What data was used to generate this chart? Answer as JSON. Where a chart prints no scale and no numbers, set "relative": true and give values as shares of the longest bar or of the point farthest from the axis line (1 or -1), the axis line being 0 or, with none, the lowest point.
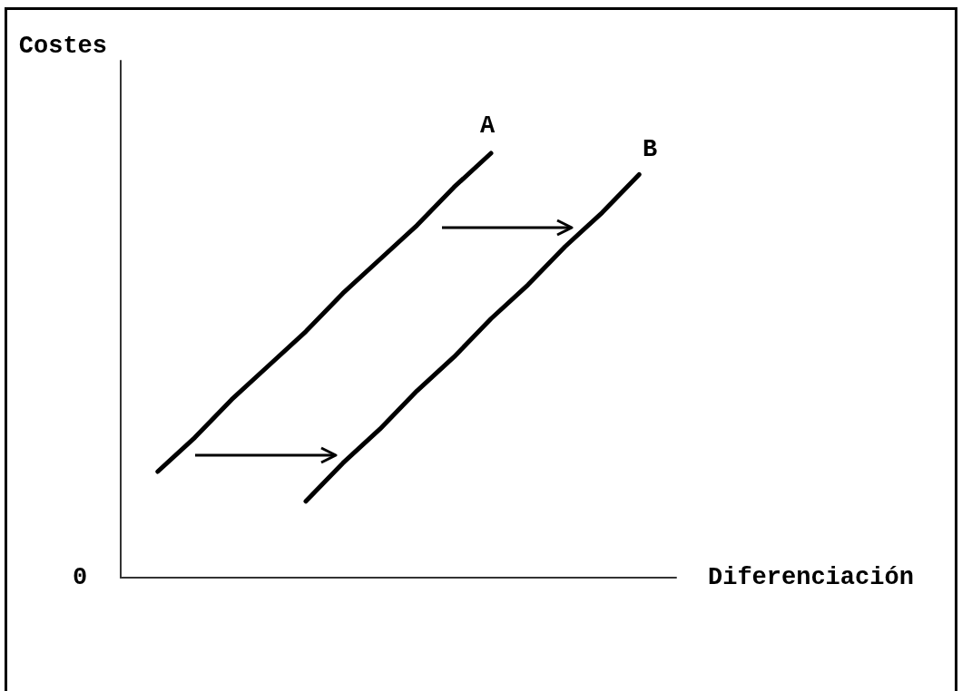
{
  "chart_data": {
    "type": "line",
    "xlabel": "Diferenciación",
    "ylabel": "Costes",
    "annotations": [
      "0"
    ],
    "categories": [
      null,
      null,
      null,
      null,
      null,
      null,
      null,
      null,
      null,
      null,
      null,
      null,
      null,
      null,
      null,
      null
    ],
    "series": [
      {
        "name": "A",
        "color": "#000000",
        "values": [
          null,
          0.25,
          0.33,
          0.42,
          0.5,
          0.58,
          0.67,
          0.75,
          0.83,
          0.92,
          1,
          null,
          null,
          null,
          null,
          null
        ]
      },
      {
        "name": "B",
        "color": "#000000",
        "values": [
          null,
          null,
          null,
          null,
          null,
          0.18,
          0.27,
          0.35,
          0.44,
          0.52,
          0.61,
          0.69,
          0.78,
          0.86,
          0.95,
          null
        ]
      }
    ],
    "relative": true,
    "legend": false,
    "grid": false,
    "marker": "none"
  }
}
